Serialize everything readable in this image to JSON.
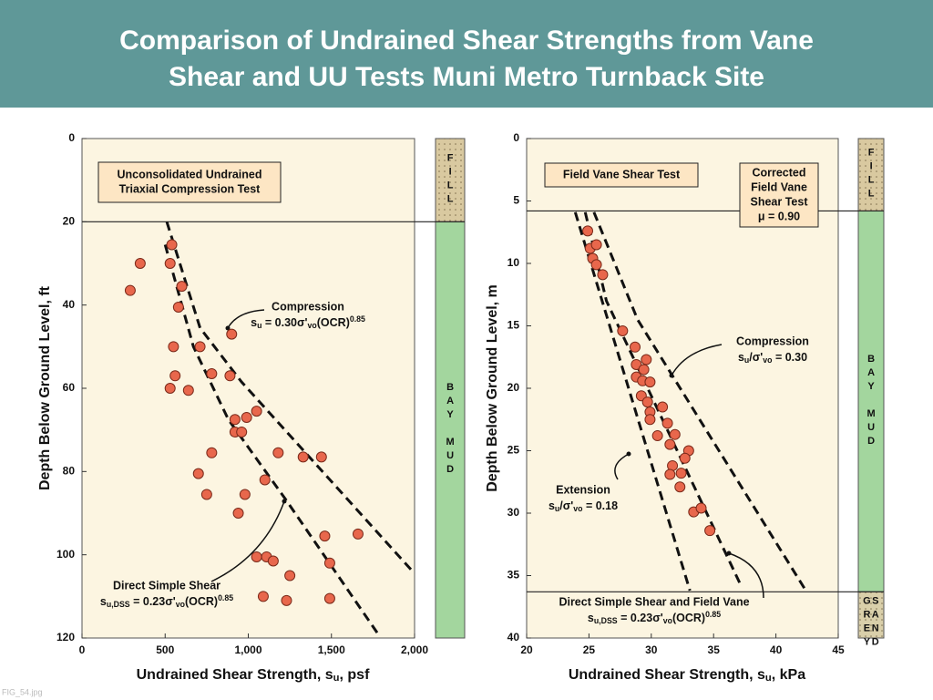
{
  "title": [
    "Comparison of Undrained Shear Strengths from Vane",
    "Shear and UU Tests Muni Metro Turnback Site"
  ],
  "footer": "FIG_54.jpg",
  "chart_data": [
    {
      "type": "scatter",
      "xlabel": [
        "Undrained Shear Strength, s",
        {
          "sub": "u"
        },
        ", psf"
      ],
      "ylabel": "Depth Below Ground Level, ft",
      "xlim": [
        0,
        2000
      ],
      "ylim": [
        0,
        120
      ],
      "y_reversed": true,
      "xticks": [
        0,
        500,
        {
          "value": 1000,
          "label": "1,000"
        },
        {
          "value": 1500,
          "label": "1,500"
        },
        {
          "value": 2000,
          "label": "2,000"
        }
      ],
      "yticks": [
        0,
        20,
        40,
        60,
        80,
        100,
        120
      ],
      "color": "#e8674c",
      "x": [
        540,
        530,
        350,
        290,
        600,
        580,
        550,
        710,
        780,
        890,
        560,
        530,
        640,
        900,
        920,
        990,
        1050,
        920,
        960,
        780,
        1180,
        1330,
        1440,
        1100,
        700,
        750,
        980,
        940,
        1460,
        1660,
        1050,
        1110,
        1150,
        1490,
        1250,
        1090,
        1230,
        1490
      ],
      "values": [
        25.5,
        30,
        30,
        36.5,
        35.5,
        40.5,
        50,
        50,
        56.5,
        57,
        57,
        60,
        60.5,
        47,
        67.5,
        67,
        65.5,
        70.5,
        70.5,
        75.5,
        75.5,
        76.5,
        76.5,
        82,
        80.5,
        85.5,
        85.5,
        90,
        95.5,
        95,
        100.5,
        100.5,
        101.5,
        102,
        105,
        110,
        111,
        110.5
      ],
      "lines": [
        {
          "label": [
            "Compression",
            [
              "s",
              {
                "sub": "u"
              },
              " = 0.30σ'",
              {
                "sub": "vo"
              },
              "(OCR)",
              {
                "sup": "0.85"
              }
            ]
          ],
          "x": [
            510,
            710,
            960,
            2000
          ],
          "values": [
            20,
            45.5,
            58.5,
            104.5
          ]
        },
        {
          "label": [
            "Direct Simple Shear",
            [
              "s",
              {
                "sub": "u,DSS"
              },
              " = 0.23σ'",
              {
                "sub": "vo"
              },
              "(OCR)",
              {
                "sup": "0.85"
              }
            ]
          ],
          "x": [
            500,
            670,
            880,
            1230,
            1780
          ],
          "values": [
            25.5,
            50,
            67.5,
            87,
            119
          ]
        }
      ],
      "boxes": [
        [
          "Unconsolidated Undrained",
          "Triaxial Compression Test"
        ]
      ],
      "layers": [
        {
          "label": "FILL",
          "top": 0,
          "bottom": 20,
          "color": "#d9c9a0"
        },
        {
          "label": "BAY MUD",
          "top": 20,
          "bottom": 120,
          "color": "#a3d69e"
        }
      ]
    },
    {
      "type": "scatter",
      "xlabel": [
        "Undrained Shear Strength, s",
        {
          "sub": "u"
        },
        ", kPa"
      ],
      "ylabel": "Depth Below Ground Level, m",
      "xlim": [
        20,
        45
      ],
      "ylim": [
        0,
        40
      ],
      "y_reversed": true,
      "xticks": [
        20,
        25,
        30,
        35,
        40,
        45
      ],
      "yticks": [
        0,
        5,
        10,
        15,
        20,
        25,
        30,
        35,
        40
      ],
      "color": "#e8674c",
      "x": [
        24.9,
        25.1,
        25.6,
        25.3,
        25.6,
        26.1,
        27.7,
        28.7,
        29.6,
        28.8,
        29.4,
        28.8,
        29.3,
        29.9,
        29.2,
        29.7,
        29.9,
        30.9,
        29.9,
        31.3,
        30.5,
        31.9,
        31.5,
        33.0,
        32.7,
        31.7,
        32.4,
        31.5,
        32.3,
        33.4,
        34.0,
        34.7
      ],
      "values": [
        7.4,
        8.8,
        8.5,
        9.6,
        10.1,
        10.9,
        15.4,
        16.7,
        17.7,
        18.1,
        18.5,
        19.1,
        19.4,
        19.5,
        20.6,
        21.1,
        21.9,
        21.5,
        22.5,
        22.8,
        23.8,
        23.7,
        24.5,
        25.0,
        25.6,
        26.2,
        26.8,
        26.9,
        27.9,
        29.9,
        29.6,
        31.4
      ],
      "lines": [
        {
          "label": [
            "Compression",
            [
              "s",
              {
                "sub": "u"
              },
              "/σ'",
              {
                "sub": "vo"
              },
              " = 0.30"
            ]
          ],
          "x": [
            25.4,
            28.9,
            42.4
          ],
          "values": [
            5.9,
            14.5,
            36.2
          ]
        },
        {
          "label": [
            "Extension",
            [
              "s",
              {
                "sub": "u"
              },
              "/σ'",
              {
                "sub": "vo"
              },
              " = 0.18"
            ]
          ],
          "x": [
            23.9,
            33.1
          ],
          "values": [
            5.9,
            36.2
          ]
        },
        {
          "label": [
            "Direct Simple Shear and Field Vane",
            [
              "s",
              {
                "sub": "u,DSS"
              },
              " = 0.23σ'",
              {
                "sub": "vo"
              },
              "(OCR)",
              {
                "sup": "0.85"
              }
            ]
          ],
          "x": [
            24.7,
            26.4,
            37.1
          ],
          "values": [
            5.9,
            13.0,
            35.6
          ]
        }
      ],
      "boxes": [
        [
          "Field Vane Shear Test"
        ],
        [
          "Corrected",
          "Field Vane",
          "Shear Test",
          "μ = 0.90"
        ]
      ],
      "layers": [
        {
          "label": "FILL",
          "top": 0,
          "bottom": 5.8,
          "color": "#d9c9a0"
        },
        {
          "label": "BAY MUD",
          "top": 5.8,
          "bottom": 36.3,
          "color": "#a3d69e"
        },
        {
          "label": [
            "GREY",
            "SAND"
          ],
          "top": 36.3,
          "bottom": 40,
          "color": "#d9cfaa"
        }
      ]
    }
  ]
}
